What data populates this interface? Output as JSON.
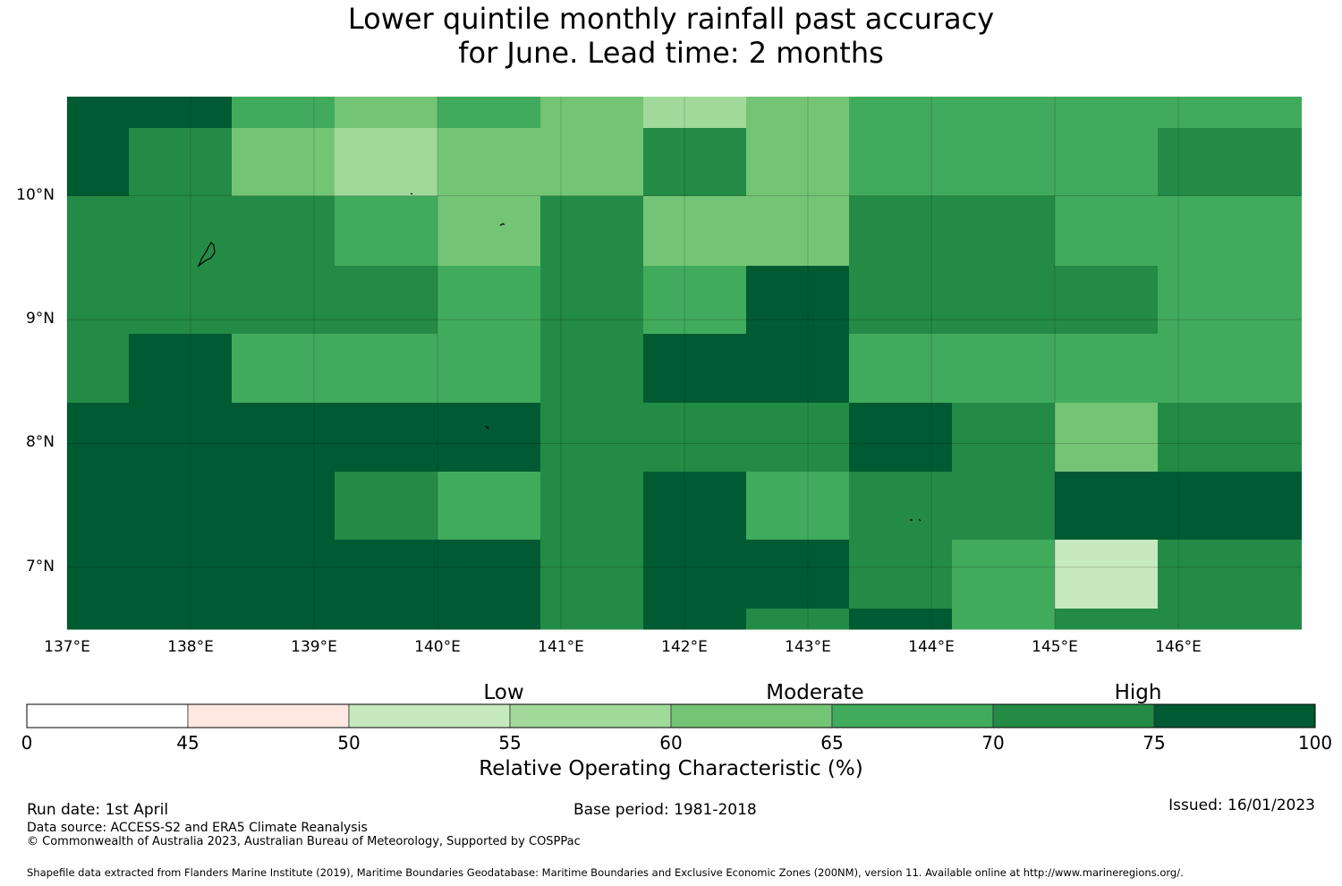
{
  "title_line1": "Lower quintile monthly rainfall past accuracy",
  "title_line2": "for June. Lead time: 2 months",
  "map": {
    "lon_range": [
      137,
      147
    ],
    "lat_range": [
      6.5,
      10.8
    ],
    "lon_ticks": [
      "137°E",
      "138°E",
      "139°E",
      "140°E",
      "141°E",
      "142°E",
      "143°E",
      "144°E",
      "145°E",
      "146°E"
    ],
    "lat_ticks": [
      "10°N",
      "9°N",
      "8°N",
      "7°N"
    ],
    "colors": [
      "#ffffff",
      "#fee8e1",
      "#c7e9c0",
      "#a1d99b",
      "#74c476",
      "#41ab5d",
      "#238b45",
      "#005a32"
    ],
    "cell_levels": [
      [
        7,
        7,
        5,
        4,
        5,
        4,
        3,
        4,
        5,
        5,
        5,
        5
      ],
      [
        7,
        6,
        4,
        3,
        4,
        4,
        6,
        4,
        5,
        5,
        5,
        6
      ],
      [
        6,
        6,
        6,
        5,
        4,
        6,
        4,
        4,
        6,
        6,
        5,
        5
      ],
      [
        6,
        6,
        6,
        6,
        5,
        6,
        5,
        7,
        6,
        6,
        6,
        5
      ],
      [
        6,
        7,
        5,
        5,
        5,
        6,
        7,
        7,
        5,
        5,
        5,
        5
      ],
      [
        7,
        7,
        7,
        7,
        7,
        6,
        6,
        6,
        7,
        6,
        4,
        6
      ],
      [
        7,
        7,
        7,
        6,
        5,
        6,
        7,
        5,
        6,
        6,
        7,
        7
      ],
      [
        7,
        7,
        7,
        7,
        7,
        6,
        7,
        7,
        6,
        5,
        2,
        6
      ],
      [
        7,
        7,
        7,
        7,
        7,
        6,
        7,
        6,
        7,
        5,
        6,
        6
      ]
    ]
  },
  "colorbar": {
    "categories": [
      "Low",
      "Moderate",
      "High"
    ],
    "ticks": [
      "0",
      "45",
      "50",
      "55",
      "60",
      "65",
      "70",
      "75",
      "100"
    ],
    "title": "Relative Operating Characteristic (%)"
  },
  "footer": {
    "run_date": "Run date: 1st April",
    "base_period": "Base period: 1981-2018",
    "issued": "Issued: 16/01/2023",
    "data_source": "Data source: ACCESS-S2 and ERA5 Climate Reanalysis",
    "copyright": "© Commonwealth of Australia 2023, Australian Bureau of Meteorology, Supported by COSPPac",
    "shapefile": "Shapefile data extracted from Flanders Marine Institute (2019), Maritime Boundaries Geodatabase: Maritime Boundaries and Exclusive Economic Zones (200NM), version 11. Available online at http://www.marineregions.org/."
  }
}
